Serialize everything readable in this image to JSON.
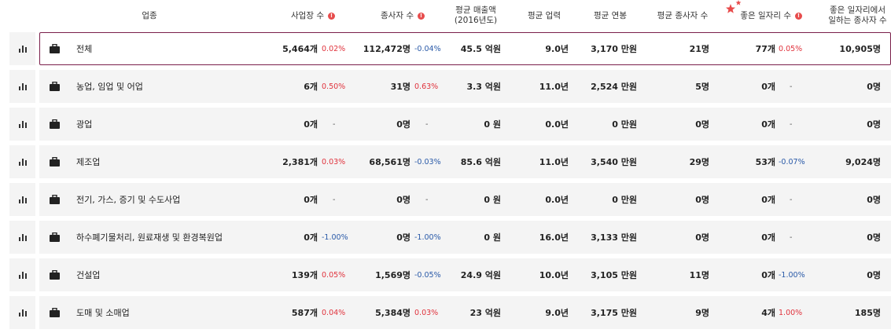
{
  "header": {
    "industry": "업종",
    "sites": "사업장 수",
    "employees": "종사자 수",
    "revenue_line1": "평균 매출액",
    "revenue_line2": "(2016년도)",
    "career": "평균 업력",
    "salary": "평균 연봉",
    "avg_employees": "평균 종사자 수",
    "good_jobs": "좋은 일자리 수",
    "good_job_emp_line1": "좋은 일자리에서",
    "good_job_emp_line2": "일하는 종사자 수",
    "info_glyph": "!"
  },
  "colors": {
    "accent": "#7a1f4a",
    "up": "#e0323c",
    "down": "#2a5aa8",
    "info": "#e74c4c",
    "star": "#e84a4a"
  },
  "rows": [
    {
      "name": "전체",
      "sites": "5,464개",
      "sites_chg": "0.02%",
      "sites_dir": "up",
      "emp": "112,472명",
      "emp_chg": "-0.04%",
      "emp_dir": "down",
      "revenue": "45.5 억원",
      "career": "9.0년",
      "salary": "3,170 만원",
      "avg_emp": "21명",
      "good": "77개",
      "good_chg": "0.05%",
      "good_dir": "up",
      "good_emp": "10,905명",
      "selected": true
    },
    {
      "name": "농업, 임업 및 어업",
      "sites": "6개",
      "sites_chg": "0.50%",
      "sites_dir": "up",
      "emp": "31명",
      "emp_chg": "0.63%",
      "emp_dir": "up",
      "revenue": "3.3 억원",
      "career": "11.0년",
      "salary": "2,524 만원",
      "avg_emp": "5명",
      "good": "0개",
      "good_chg": "-",
      "good_dir": "none",
      "good_emp": "0명"
    },
    {
      "name": "광업",
      "sites": "0개",
      "sites_chg": "-",
      "sites_dir": "none",
      "emp": "0명",
      "emp_chg": "-",
      "emp_dir": "none",
      "revenue": "0 원",
      "career": "0.0년",
      "salary": "0 만원",
      "avg_emp": "0명",
      "good": "0개",
      "good_chg": "-",
      "good_dir": "none",
      "good_emp": "0명"
    },
    {
      "name": "제조업",
      "sites": "2,381개",
      "sites_chg": "0.03%",
      "sites_dir": "up",
      "emp": "68,561명",
      "emp_chg": "-0.03%",
      "emp_dir": "down",
      "revenue": "85.6 억원",
      "career": "11.0년",
      "salary": "3,540 만원",
      "avg_emp": "29명",
      "good": "53개",
      "good_chg": "-0.07%",
      "good_dir": "down",
      "good_emp": "9,024명"
    },
    {
      "name": "전기, 가스, 증기 및 수도사업",
      "sites": "0개",
      "sites_chg": "-",
      "sites_dir": "none",
      "emp": "0명",
      "emp_chg": "-",
      "emp_dir": "none",
      "revenue": "0 원",
      "career": "0.0년",
      "salary": "0 만원",
      "avg_emp": "0명",
      "good": "0개",
      "good_chg": "-",
      "good_dir": "none",
      "good_emp": "0명"
    },
    {
      "name": "하수폐기물처리, 원료재생 및 환경복원업",
      "sites": "0개",
      "sites_chg": "-1.00%",
      "sites_dir": "down",
      "emp": "0명",
      "emp_chg": "-1.00%",
      "emp_dir": "down",
      "revenue": "0 원",
      "career": "16.0년",
      "salary": "3,133 만원",
      "avg_emp": "0명",
      "good": "0개",
      "good_chg": "-",
      "good_dir": "none",
      "good_emp": "0명"
    },
    {
      "name": "건설업",
      "sites": "139개",
      "sites_chg": "0.05%",
      "sites_dir": "up",
      "emp": "1,569명",
      "emp_chg": "-0.05%",
      "emp_dir": "down",
      "revenue": "24.9 억원",
      "career": "10.0년",
      "salary": "3,105 만원",
      "avg_emp": "11명",
      "good": "0개",
      "good_chg": "-1.00%",
      "good_dir": "down",
      "good_emp": "0명"
    },
    {
      "name": "도매 및 소매업",
      "sites": "587개",
      "sites_chg": "0.04%",
      "sites_dir": "up",
      "emp": "5,384명",
      "emp_chg": "0.03%",
      "emp_dir": "up",
      "revenue": "23 억원",
      "career": "9.0년",
      "salary": "3,175 만원",
      "avg_emp": "9명",
      "good": "4개",
      "good_chg": "1.00%",
      "good_dir": "up",
      "good_emp": "185명"
    }
  ]
}
